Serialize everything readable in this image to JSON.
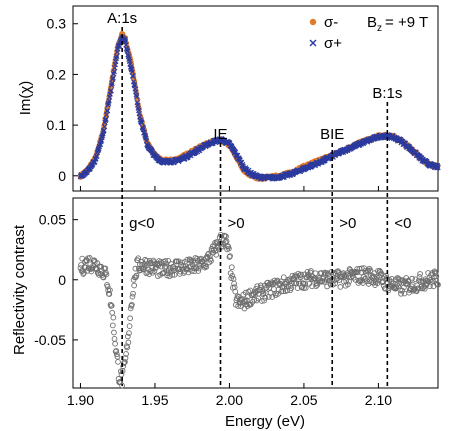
{
  "chart_data": [
    {
      "type": "scatter",
      "panel": "top",
      "ylabel": "Im(χ)",
      "xlim": [
        1.895,
        2.14
      ],
      "ylim": [
        -0.03,
        0.335
      ],
      "yticks": [
        0,
        0.1,
        0.2,
        0.3
      ],
      "ytick_labels": [
        "0",
        "0.1",
        "0.2",
        "0.3"
      ],
      "grid": false,
      "legend_position": "top-right",
      "field_label": {
        "main": "B",
        "sub": "z",
        "rest": "= +9 T"
      },
      "series": [
        {
          "name": "σ-",
          "marker": "dot",
          "color": "#e07b2a",
          "x": [
            1.9,
            1.905,
            1.91,
            1.915,
            1.92,
            1.925,
            1.928,
            1.93,
            1.935,
            1.94,
            1.945,
            1.95,
            1.955,
            1.96,
            1.965,
            1.97,
            1.975,
            1.98,
            1.985,
            1.99,
            1.995,
            2.0,
            2.005,
            2.01,
            2.015,
            2.02,
            2.03,
            2.04,
            2.05,
            2.06,
            2.07,
            2.08,
            2.09,
            2.1,
            2.105,
            2.11,
            2.115,
            2.12,
            2.125,
            2.13,
            2.135,
            2.14
          ],
          "y": [
            0.0,
            0.012,
            0.035,
            0.085,
            0.17,
            0.255,
            0.28,
            0.272,
            0.21,
            0.12,
            0.065,
            0.04,
            0.03,
            0.03,
            0.033,
            0.04,
            0.048,
            0.056,
            0.063,
            0.068,
            0.07,
            0.06,
            0.035,
            0.01,
            0.0,
            -0.005,
            -0.002,
            0.005,
            0.018,
            0.03,
            0.042,
            0.055,
            0.068,
            0.078,
            0.08,
            0.077,
            0.07,
            0.058,
            0.045,
            0.03,
            0.022,
            0.018
          ]
        },
        {
          "name": "σ+",
          "marker": "x",
          "color": "#2b3a9e",
          "x": [
            1.9,
            1.905,
            1.91,
            1.915,
            1.92,
            1.925,
            1.928,
            1.93,
            1.935,
            1.94,
            1.945,
            1.95,
            1.955,
            1.96,
            1.965,
            1.97,
            1.975,
            1.98,
            1.985,
            1.99,
            1.995,
            2.0,
            2.005,
            2.01,
            2.015,
            2.02,
            2.03,
            2.04,
            2.05,
            2.06,
            2.07,
            2.08,
            2.09,
            2.1,
            2.105,
            2.11,
            2.115,
            2.12,
            2.125,
            2.13,
            2.135,
            2.14
          ],
          "y": [
            0.0,
            0.01,
            0.03,
            0.08,
            0.16,
            0.25,
            0.275,
            0.265,
            0.2,
            0.115,
            0.06,
            0.038,
            0.028,
            0.028,
            0.03,
            0.036,
            0.044,
            0.053,
            0.062,
            0.068,
            0.071,
            0.063,
            0.04,
            0.015,
            0.003,
            -0.003,
            -0.004,
            0.002,
            0.014,
            0.026,
            0.04,
            0.054,
            0.066,
            0.077,
            0.079,
            0.076,
            0.069,
            0.057,
            0.044,
            0.03,
            0.021,
            0.017
          ]
        }
      ],
      "annotations": [
        {
          "text": "A:1s",
          "x": 1.928
        },
        {
          "text": "IE",
          "x": 1.994
        },
        {
          "text": "BIE",
          "x": 2.069
        },
        {
          "text": "B:1s",
          "x": 2.106
        }
      ]
    },
    {
      "type": "scatter",
      "panel": "bottom",
      "xlabel": "Energy (eV)",
      "ylabel": "Reflectivity contrast",
      "xlim": [
        1.895,
        2.14
      ],
      "ylim": [
        -0.09,
        0.068
      ],
      "xticks": [
        1.9,
        1.95,
        2.0,
        2.05,
        2.1
      ],
      "xtick_labels": [
        "1.90",
        "1.95",
        "2.00",
        "2.05",
        "2.10"
      ],
      "yticks": [
        -0.05,
        0,
        0.05
      ],
      "ytick_labels": [
        "-0.05",
        "0",
        "0.05"
      ],
      "grid": false,
      "series": [
        {
          "marker": "open-circle",
          "color": "#6e6e6e",
          "x": [
            1.9,
            1.905,
            1.91,
            1.915,
            1.918,
            1.92,
            1.922,
            1.924,
            1.926,
            1.928,
            1.93,
            1.932,
            1.934,
            1.936,
            1.938,
            1.94,
            1.945,
            1.95,
            1.955,
            1.96,
            1.965,
            1.97,
            1.975,
            1.98,
            1.985,
            1.99,
            1.994,
            1.996,
            1.998,
            2.0,
            2.002,
            2.004,
            2.006,
            2.01,
            2.015,
            2.02,
            2.03,
            2.04,
            2.05,
            2.06,
            2.07,
            2.08,
            2.09,
            2.1,
            2.105,
            2.11,
            2.115,
            2.12,
            2.125,
            2.13,
            2.135,
            2.14
          ],
          "y": [
            0.01,
            0.014,
            0.013,
            0.008,
            0.0,
            -0.015,
            -0.035,
            -0.06,
            -0.08,
            -0.083,
            -0.07,
            -0.05,
            -0.02,
            0.0,
            0.01,
            0.013,
            0.012,
            0.01,
            0.008,
            0.01,
            0.011,
            0.01,
            0.011,
            0.012,
            0.016,
            0.024,
            0.032,
            0.034,
            0.03,
            0.018,
            0.0,
            -0.015,
            -0.02,
            -0.018,
            -0.013,
            -0.012,
            -0.007,
            -0.003,
            0.0,
            0.002,
            0.0,
            0.002,
            0.004,
            0.002,
            -0.002,
            -0.004,
            -0.006,
            -0.005,
            -0.003,
            -0.001,
            0.0,
            0.001
          ]
        }
      ],
      "annotations": [
        {
          "text": "g<0",
          "x": 1.928
        },
        {
          "text": ">0",
          "x": 1.994
        },
        {
          "text": ">0",
          "x": 2.069
        },
        {
          "text": "<0",
          "x": 2.106
        }
      ]
    }
  ]
}
